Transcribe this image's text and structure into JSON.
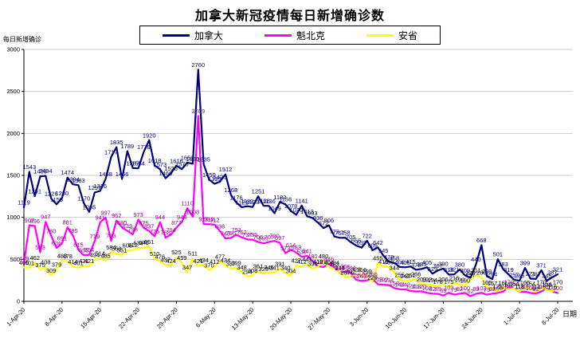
{
  "title": "加拿大新冠疫情每日新增确诊数",
  "y_axis_title": "每日新增确诊",
  "x_axis_title": "日期",
  "legend": {
    "items": [
      {
        "id": "canada",
        "label": "加拿大",
        "color": "#000080"
      },
      {
        "id": "quebec",
        "label": "魁北克",
        "color": "#FF00FF"
      },
      {
        "id": "ontario",
        "label": "安省",
        "color": "#FFFF00"
      }
    ]
  },
  "chart_data": {
    "type": "line",
    "title": "加拿大新冠疫情每日新增确诊数",
    "xlabel": "日期",
    "ylabel": "每日新增确诊",
    "ylim": [
      0,
      3000
    ],
    "y_ticks": [
      0,
      500,
      1000,
      1500,
      2000,
      2500,
      3000
    ],
    "grid": true,
    "legend_position": "top",
    "data_labels": true,
    "x_tick_labels": [
      "1-Apr-20",
      "8-Apr-20",
      "15-Apr-20",
      "22-Apr-20",
      "29-Apr-20",
      "6-May-20",
      "13-May-20",
      "20-May-20",
      "27-May-20",
      "3-Jun-20",
      "10-Jun-20",
      "17-Jun-20",
      "24-Jun-20",
      "1-Jul-20",
      "8-Jul-20"
    ],
    "tick_interval_days": 7,
    "series": [
      {
        "id": "canada",
        "name": "加拿大",
        "color": "#000080",
        "label_color": "#000080",
        "values": [
          1119,
          1543,
          1251,
          1489,
          1494,
          1226,
          1155,
          1230,
          1474,
          1394,
          1383,
          1170,
          1065,
          1297,
          1316,
          1458,
          1717,
          1835,
          1456,
          1789,
          1587,
          1584,
          1778,
          1920,
          1618,
          1573,
          1466,
          1526,
          1616,
          1575,
          1653,
          1639,
          2760,
          1635,
          1450,
          1399,
          1426,
          1512,
          1268,
          1176,
          1121,
          1133,
          1123,
          1251,
          1138,
          1136,
          1049,
          1182,
          1156,
          1078,
          1030,
          1141,
          1013,
          993,
          936,
          872,
          906,
          772,
          757,
          758,
          705,
          665,
          639,
          722,
          609,
          642,
          545,
          472,
          458,
          409,
          405,
          415,
          376,
          385,
          405,
          329,
          367,
          390,
          318,
          321,
          380,
          309,
          279,
          440,
          668,
          299,
          264,
          501,
          383,
          319,
          257,
          245,
          399,
          271,
          267,
          371,
          245,
          287,
          321
        ]
      },
      {
        "id": "quebec",
        "name": "魁北克",
        "color": "#FF00FF",
        "label_color": "#A000A0",
        "values": [
          449,
          907,
          896,
          583,
          947,
          780,
          636,
          691,
          881,
          785,
          615,
          550,
          554,
          719,
          941,
          997,
          723,
          962,
          880,
          839,
          798,
          973,
          875,
          837,
          775,
          944,
          758,
          794,
          877,
          944,
          1110,
          1008,
          2209,
          919,
          919,
          912,
          836,
          749,
          756,
          793,
          762,
          737,
          735,
          706,
          691,
          707,
          720,
          697,
          573,
          614,
          583,
          530,
          541,
          480,
          419,
          408,
          446,
          404,
          338,
          356,
          344,
          255,
          243,
          251,
          266,
          203,
          197,
          194,
          158,
          144,
          142,
          124,
          118,
          120,
          102,
          92,
          89,
          69,
          103,
          79,
          92,
          100,
          62,
          89,
          102,
          79,
          92,
          100,
          118,
          170,
          154,
          114,
          116,
          100,
          92,
          118,
          154,
          116,
          100
        ]
      },
      {
        "id": "ontario",
        "name": "安省",
        "color": "#FFFF00",
        "label_color": "#000000",
        "values": [
          405,
          401,
          462,
          375,
          408,
          309,
          379,
          483,
          478,
          414,
          401,
          421,
          421,
          494,
          514,
          485,
          584,
          568,
          551,
          606,
          612,
          634,
          640,
          651,
          510,
          476,
          437,
          424,
          525,
          459,
          347,
          511,
          421,
          434,
          370,
          412,
          477,
          434,
          387,
          399,
          348,
          294,
          308,
          361,
          329,
          345,
          341,
          391,
          340,
          304,
          427,
          412,
          441,
          390,
          412,
          480,
          404,
          383,
          344,
          287,
          292,
          323,
          316,
          299,
          229,
          455,
          415,
          409,
          344,
          255,
          243,
          251,
          266,
          203,
          197,
          194,
          178,
          206,
          175,
          216,
          199,
          190,
          257,
          311,
          286,
          165,
          157,
          121,
          161,
          142,
          154,
          118,
          165,
          154,
          114,
          170,
          138,
          116,
          170
        ]
      }
    ]
  }
}
